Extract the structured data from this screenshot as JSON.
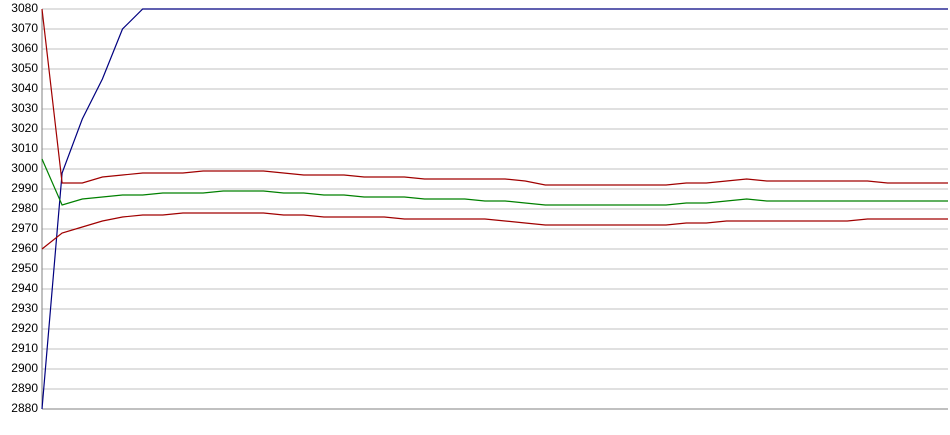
{
  "chart_data": {
    "type": "line",
    "categories": [
      null,
      null,
      null,
      null,
      null,
      null,
      null,
      null,
      null,
      null,
      null,
      null,
      null,
      null,
      null,
      null,
      null,
      null,
      null,
      null,
      null,
      null,
      null,
      null,
      null,
      null,
      null,
      null,
      null,
      null,
      null,
      null,
      null,
      null,
      null,
      null,
      null,
      null,
      null,
      null,
      null,
      null,
      null,
      null,
      null,
      null
    ],
    "series": [
      {
        "color": "#000080",
        "values": [
          2880,
          2998,
          3025,
          3045,
          3070,
          3080,
          3080,
          3080,
          3080,
          3080,
          3080,
          3080,
          3080,
          3080,
          3080,
          3080,
          3080,
          3080,
          3080,
          3080,
          3080,
          3080,
          3080,
          3080,
          3080,
          3080,
          3080,
          3080,
          3080,
          3080,
          3080,
          3080,
          3080,
          3080,
          3080,
          3080,
          3080,
          3080,
          3080,
          3080,
          3080,
          3080,
          3080,
          3080,
          3080,
          3080
        ]
      },
      {
        "color": "#a00000",
        "values": [
          3080,
          2993,
          2993,
          2996,
          2997,
          2998,
          2998,
          2998,
          2999,
          2999,
          2999,
          2999,
          2998,
          2997,
          2997,
          2997,
          2996,
          2996,
          2996,
          2995,
          2995,
          2995,
          2995,
          2995,
          2994,
          2992,
          2992,
          2992,
          2992,
          2992,
          2992,
          2992,
          2993,
          2993,
          2994,
          2995,
          2994,
          2994,
          2994,
          2994,
          2994,
          2994,
          2993,
          2993,
          2993,
          2993
        ]
      },
      {
        "color": "#008000",
        "values": [
          3005,
          2982,
          2985,
          2986,
          2987,
          2987,
          2988,
          2988,
          2988,
          2989,
          2989,
          2989,
          2988,
          2988,
          2987,
          2987,
          2986,
          2986,
          2986,
          2985,
          2985,
          2985,
          2984,
          2984,
          2983,
          2982,
          2982,
          2982,
          2982,
          2982,
          2982,
          2982,
          2983,
          2983,
          2984,
          2985,
          2984,
          2984,
          2984,
          2984,
          2984,
          2984,
          2984,
          2984,
          2984,
          2984
        ]
      },
      {
        "color": "#a00000",
        "values": [
          2960,
          2968,
          2971,
          2974,
          2976,
          2977,
          2977,
          2978,
          2978,
          2978,
          2978,
          2978,
          2977,
          2977,
          2976,
          2976,
          2976,
          2976,
          2975,
          2975,
          2975,
          2975,
          2975,
          2974,
          2973,
          2972,
          2972,
          2972,
          2972,
          2972,
          2972,
          2972,
          2973,
          2973,
          2974,
          2974,
          2974,
          2974,
          2974,
          2974,
          2974,
          2975,
          2975,
          2975,
          2975,
          2975
        ]
      }
    ],
    "ylim": [
      2880,
      3080
    ],
    "yticks": [
      2880,
      2890,
      2900,
      2910,
      2920,
      2930,
      2940,
      2950,
      2960,
      2970,
      2980,
      2990,
      3000,
      3010,
      3020,
      3030,
      3040,
      3050,
      3060,
      3070,
      3080
    ],
    "grid": true
  }
}
